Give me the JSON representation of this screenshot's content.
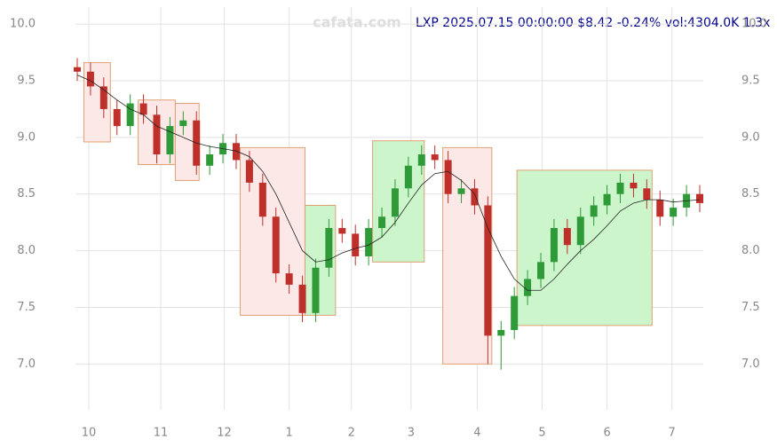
{
  "chart_data": {
    "type": "candlestick",
    "watermark": "cafata.com",
    "title": "LXP 2025.07.15 00:00:00 $8.42 -0.24% vol:4304.0K 1.3x",
    "xlim": [
      0,
      47
    ],
    "xticks": [
      {
        "value": 0.87,
        "label": "10"
      },
      {
        "value": 6.3,
        "label": "11"
      },
      {
        "value": 11.1,
        "label": "12"
      },
      {
        "value": 16.0,
        "label": "1"
      },
      {
        "value": 20.7,
        "label": "2"
      },
      {
        "value": 25.2,
        "label": "3"
      },
      {
        "value": 30.2,
        "label": "4"
      },
      {
        "value": 35.1,
        "label": "5"
      },
      {
        "value": 40.0,
        "label": "6"
      },
      {
        "value": 44.9,
        "label": "7"
      }
    ],
    "ylim": [
      6.65,
      10.15
    ],
    "yticks": [
      {
        "value": 7.0,
        "label": "7.0"
      },
      {
        "value": 7.5,
        "label": "7.5"
      },
      {
        "value": 8.0,
        "label": "8.0"
      },
      {
        "value": 8.5,
        "label": "8.5"
      },
      {
        "value": 9.0,
        "label": "9.0"
      },
      {
        "value": 9.5,
        "label": "9.5"
      },
      {
        "value": 10.0,
        "label": "10.0"
      }
    ],
    "grid": true,
    "up_color": "#2e9a38",
    "down_color": "#c0302b",
    "open": [
      9.62,
      9.58,
      9.45,
      9.25,
      9.1,
      9.3,
      9.2,
      8.85,
      9.1,
      9.15,
      8.75,
      8.85,
      8.95,
      8.8,
      8.6,
      8.3,
      7.8,
      7.7,
      7.45,
      7.85,
      8.2,
      8.15,
      7.95,
      8.2,
      8.3,
      8.55,
      8.75,
      8.85,
      8.8,
      8.5,
      8.55,
      8.4,
      7.25,
      7.3,
      7.6,
      7.75,
      7.9,
      8.2,
      8.05,
      8.3,
      8.4,
      8.5,
      8.6,
      8.55,
      8.45,
      8.3,
      8.38,
      8.5
    ],
    "high": [
      9.7,
      9.66,
      9.53,
      9.33,
      9.38,
      9.38,
      9.28,
      9.18,
      9.23,
      9.23,
      8.93,
      9.03,
      9.03,
      8.88,
      8.68,
      8.38,
      7.88,
      7.78,
      7.93,
      8.28,
      8.28,
      8.23,
      8.28,
      8.38,
      8.63,
      8.83,
      8.93,
      8.93,
      8.88,
      8.63,
      8.63,
      8.48,
      7.38,
      7.68,
      7.83,
      7.98,
      8.28,
      8.28,
      8.38,
      8.48,
      8.58,
      8.68,
      8.68,
      8.63,
      8.53,
      8.46,
      8.58,
      8.58
    ],
    "low": [
      9.5,
      9.37,
      9.17,
      9.02,
      9.02,
      9.12,
      8.77,
      8.77,
      9.02,
      8.67,
      8.67,
      8.77,
      8.72,
      8.52,
      8.22,
      7.72,
      7.62,
      7.37,
      7.37,
      7.77,
      8.07,
      7.87,
      7.87,
      8.12,
      8.22,
      8.47,
      8.67,
      8.72,
      8.42,
      8.42,
      8.32,
      7.0,
      6.95,
      7.22,
      7.52,
      7.67,
      7.82,
      7.97,
      7.97,
      8.22,
      8.32,
      8.42,
      8.47,
      8.37,
      8.22,
      8.22,
      8.3,
      8.34
    ],
    "close": [
      9.58,
      9.45,
      9.25,
      9.1,
      9.3,
      9.2,
      8.85,
      9.1,
      9.15,
      8.75,
      8.85,
      8.95,
      8.8,
      8.6,
      8.3,
      7.8,
      7.7,
      7.45,
      7.85,
      8.2,
      8.15,
      7.95,
      8.2,
      8.3,
      8.55,
      8.75,
      8.85,
      8.8,
      8.5,
      8.55,
      8.4,
      7.25,
      7.3,
      7.6,
      7.75,
      7.9,
      8.2,
      8.05,
      8.3,
      8.4,
      8.5,
      8.6,
      8.55,
      8.45,
      8.3,
      8.38,
      8.5,
      8.42
    ],
    "ma": {
      "color": "#222222",
      "values": [
        9.55,
        9.5,
        9.42,
        9.33,
        9.25,
        9.2,
        9.1,
        9.05,
        9.0,
        8.95,
        8.92,
        8.9,
        8.88,
        8.83,
        8.7,
        8.5,
        8.25,
        8.0,
        7.9,
        7.92,
        7.98,
        8.02,
        8.05,
        8.12,
        8.25,
        8.42,
        8.58,
        8.68,
        8.7,
        8.62,
        8.5,
        8.2,
        7.95,
        7.75,
        7.65,
        7.65,
        7.75,
        7.88,
        8.0,
        8.1,
        8.22,
        8.35,
        8.42,
        8.45,
        8.45,
        8.43,
        8.44,
        8.45
      ]
    },
    "boxes": [
      {
        "x": [
          0.5,
          2.5
        ],
        "y": [
          8.96,
          9.66
        ],
        "color": "#fde8e8"
      },
      {
        "x": [
          4.6,
          7.4
        ],
        "y": [
          8.76,
          9.33
        ],
        "color": "#fde8e8"
      },
      {
        "x": [
          7.4,
          9.2
        ],
        "y": [
          8.62,
          9.3
        ],
        "color": "#fde8e8"
      },
      {
        "x": [
          12.3,
          17.2
        ],
        "y": [
          7.43,
          8.91
        ],
        "color": "#fde8e8"
      },
      {
        "x": [
          17.2,
          19.5
        ],
        "y": [
          7.43,
          8.4
        ],
        "color": "#ccf5cc"
      },
      {
        "x": [
          22.3,
          26.2
        ],
        "y": [
          7.9,
          8.97
        ],
        "color": "#ccf5cc"
      },
      {
        "x": [
          27.6,
          31.3
        ],
        "y": [
          7.0,
          8.91
        ],
        "color": "#fde8e8"
      },
      {
        "x": [
          33.2,
          43.4
        ],
        "y": [
          7.34,
          8.71
        ],
        "color": "#ccf5cc"
      }
    ]
  }
}
